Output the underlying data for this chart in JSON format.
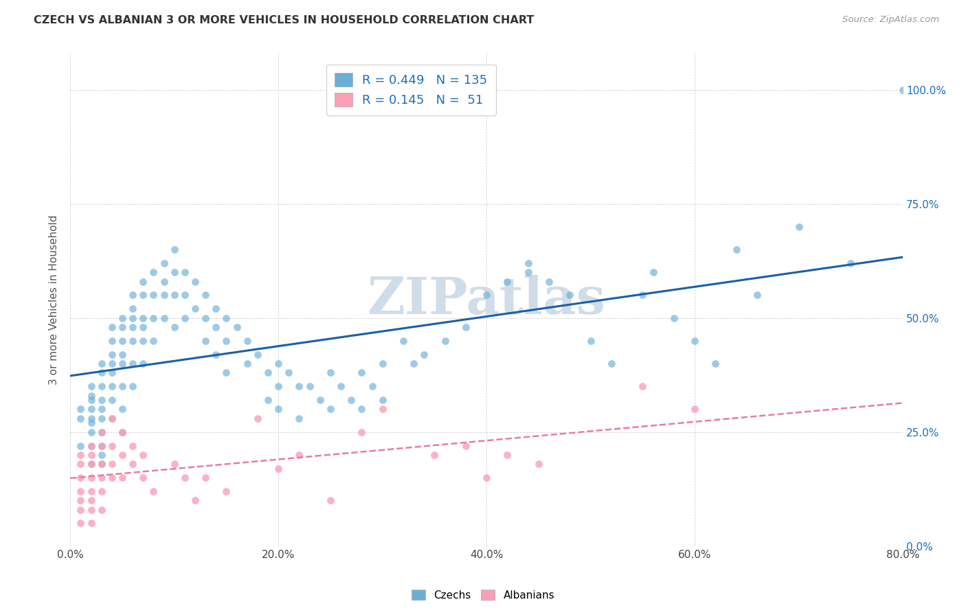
{
  "title": "CZECH VS ALBANIAN 3 OR MORE VEHICLES IN HOUSEHOLD CORRELATION CHART",
  "source": "Source: ZipAtlas.com",
  "xlabel_ticks": [
    "0.0%",
    "20.0%",
    "40.0%",
    "60.0%",
    "80.0%"
  ],
  "xlabel_tick_vals": [
    0.0,
    0.2,
    0.4,
    0.6,
    0.8
  ],
  "ylabel_ticks": [
    "0.0%",
    "25.0%",
    "50.0%",
    "75.0%",
    "100.0%"
  ],
  "ylabel_tick_vals": [
    0.0,
    0.25,
    0.5,
    0.75,
    1.0
  ],
  "ylabel_label": "3 or more Vehicles in Household",
  "czech_R": 0.449,
  "czech_N": 135,
  "albanian_R": 0.145,
  "albanian_N": 51,
  "czech_color": "#6baed6",
  "albanian_color": "#fa9fb5",
  "trend_czech_color": "#1a5fa8",
  "trend_albanian_color": "#e87ca0",
  "watermark": "ZIPatlas",
  "watermark_color": "#d0dde8",
  "legend_label_czech": "Czechs",
  "legend_label_albanian": "Albanians",
  "czech_x": [
    0.01,
    0.01,
    0.01,
    0.02,
    0.02,
    0.02,
    0.02,
    0.02,
    0.02,
    0.02,
    0.02,
    0.02,
    0.03,
    0.03,
    0.03,
    0.03,
    0.03,
    0.03,
    0.03,
    0.03,
    0.03,
    0.03,
    0.04,
    0.04,
    0.04,
    0.04,
    0.04,
    0.04,
    0.04,
    0.04,
    0.05,
    0.05,
    0.05,
    0.05,
    0.05,
    0.05,
    0.05,
    0.05,
    0.06,
    0.06,
    0.06,
    0.06,
    0.06,
    0.06,
    0.06,
    0.07,
    0.07,
    0.07,
    0.07,
    0.07,
    0.07,
    0.08,
    0.08,
    0.08,
    0.08,
    0.09,
    0.09,
    0.09,
    0.09,
    0.1,
    0.1,
    0.1,
    0.1,
    0.11,
    0.11,
    0.11,
    0.12,
    0.12,
    0.13,
    0.13,
    0.13,
    0.14,
    0.14,
    0.14,
    0.15,
    0.15,
    0.15,
    0.16,
    0.17,
    0.17,
    0.18,
    0.19,
    0.19,
    0.2,
    0.2,
    0.2,
    0.21,
    0.22,
    0.22,
    0.23,
    0.24,
    0.25,
    0.25,
    0.26,
    0.27,
    0.28,
    0.28,
    0.29,
    0.3,
    0.3,
    0.32,
    0.33,
    0.34,
    0.36,
    0.38,
    0.4,
    0.42,
    0.44,
    0.44,
    0.46,
    0.48,
    0.5,
    0.52,
    0.55,
    0.56,
    0.58,
    0.6,
    0.62,
    0.64,
    0.66,
    0.7,
    0.75,
    0.8
  ],
  "czech_y": [
    0.3,
    0.28,
    0.22,
    0.35,
    0.33,
    0.3,
    0.28,
    0.27,
    0.32,
    0.25,
    0.22,
    0.18,
    0.4,
    0.38,
    0.35,
    0.32,
    0.3,
    0.28,
    0.25,
    0.22,
    0.2,
    0.18,
    0.48,
    0.45,
    0.42,
    0.4,
    0.38,
    0.35,
    0.32,
    0.28,
    0.5,
    0.48,
    0.45,
    0.42,
    0.4,
    0.35,
    0.3,
    0.25,
    0.55,
    0.52,
    0.5,
    0.48,
    0.45,
    0.4,
    0.35,
    0.58,
    0.55,
    0.5,
    0.48,
    0.45,
    0.4,
    0.6,
    0.55,
    0.5,
    0.45,
    0.62,
    0.58,
    0.55,
    0.5,
    0.65,
    0.6,
    0.55,
    0.48,
    0.6,
    0.55,
    0.5,
    0.58,
    0.52,
    0.55,
    0.5,
    0.45,
    0.52,
    0.48,
    0.42,
    0.5,
    0.45,
    0.38,
    0.48,
    0.45,
    0.4,
    0.42,
    0.38,
    0.32,
    0.4,
    0.35,
    0.3,
    0.38,
    0.35,
    0.28,
    0.35,
    0.32,
    0.38,
    0.3,
    0.35,
    0.32,
    0.38,
    0.3,
    0.35,
    0.4,
    0.32,
    0.45,
    0.4,
    0.42,
    0.45,
    0.48,
    0.55,
    0.58,
    0.6,
    0.62,
    0.58,
    0.55,
    0.45,
    0.4,
    0.55,
    0.6,
    0.5,
    0.45,
    0.4,
    0.65,
    0.55,
    0.7,
    0.62,
    1.0
  ],
  "albanian_x": [
    0.01,
    0.01,
    0.01,
    0.01,
    0.01,
    0.01,
    0.01,
    0.02,
    0.02,
    0.02,
    0.02,
    0.02,
    0.02,
    0.02,
    0.02,
    0.03,
    0.03,
    0.03,
    0.03,
    0.03,
    0.03,
    0.04,
    0.04,
    0.04,
    0.04,
    0.05,
    0.05,
    0.05,
    0.06,
    0.06,
    0.07,
    0.07,
    0.08,
    0.1,
    0.11,
    0.12,
    0.13,
    0.15,
    0.18,
    0.2,
    0.22,
    0.25,
    0.28,
    0.3,
    0.35,
    0.38,
    0.4,
    0.42,
    0.45,
    0.55,
    0.6
  ],
  "albanian_y": [
    0.2,
    0.18,
    0.15,
    0.12,
    0.1,
    0.08,
    0.05,
    0.22,
    0.2,
    0.18,
    0.15,
    0.12,
    0.1,
    0.08,
    0.05,
    0.25,
    0.22,
    0.18,
    0.15,
    0.12,
    0.08,
    0.28,
    0.22,
    0.18,
    0.15,
    0.25,
    0.2,
    0.15,
    0.22,
    0.18,
    0.2,
    0.15,
    0.12,
    0.18,
    0.15,
    0.1,
    0.15,
    0.12,
    0.28,
    0.17,
    0.2,
    0.1,
    0.25,
    0.3,
    0.2,
    0.22,
    0.15,
    0.2,
    0.18,
    0.35,
    0.3
  ]
}
